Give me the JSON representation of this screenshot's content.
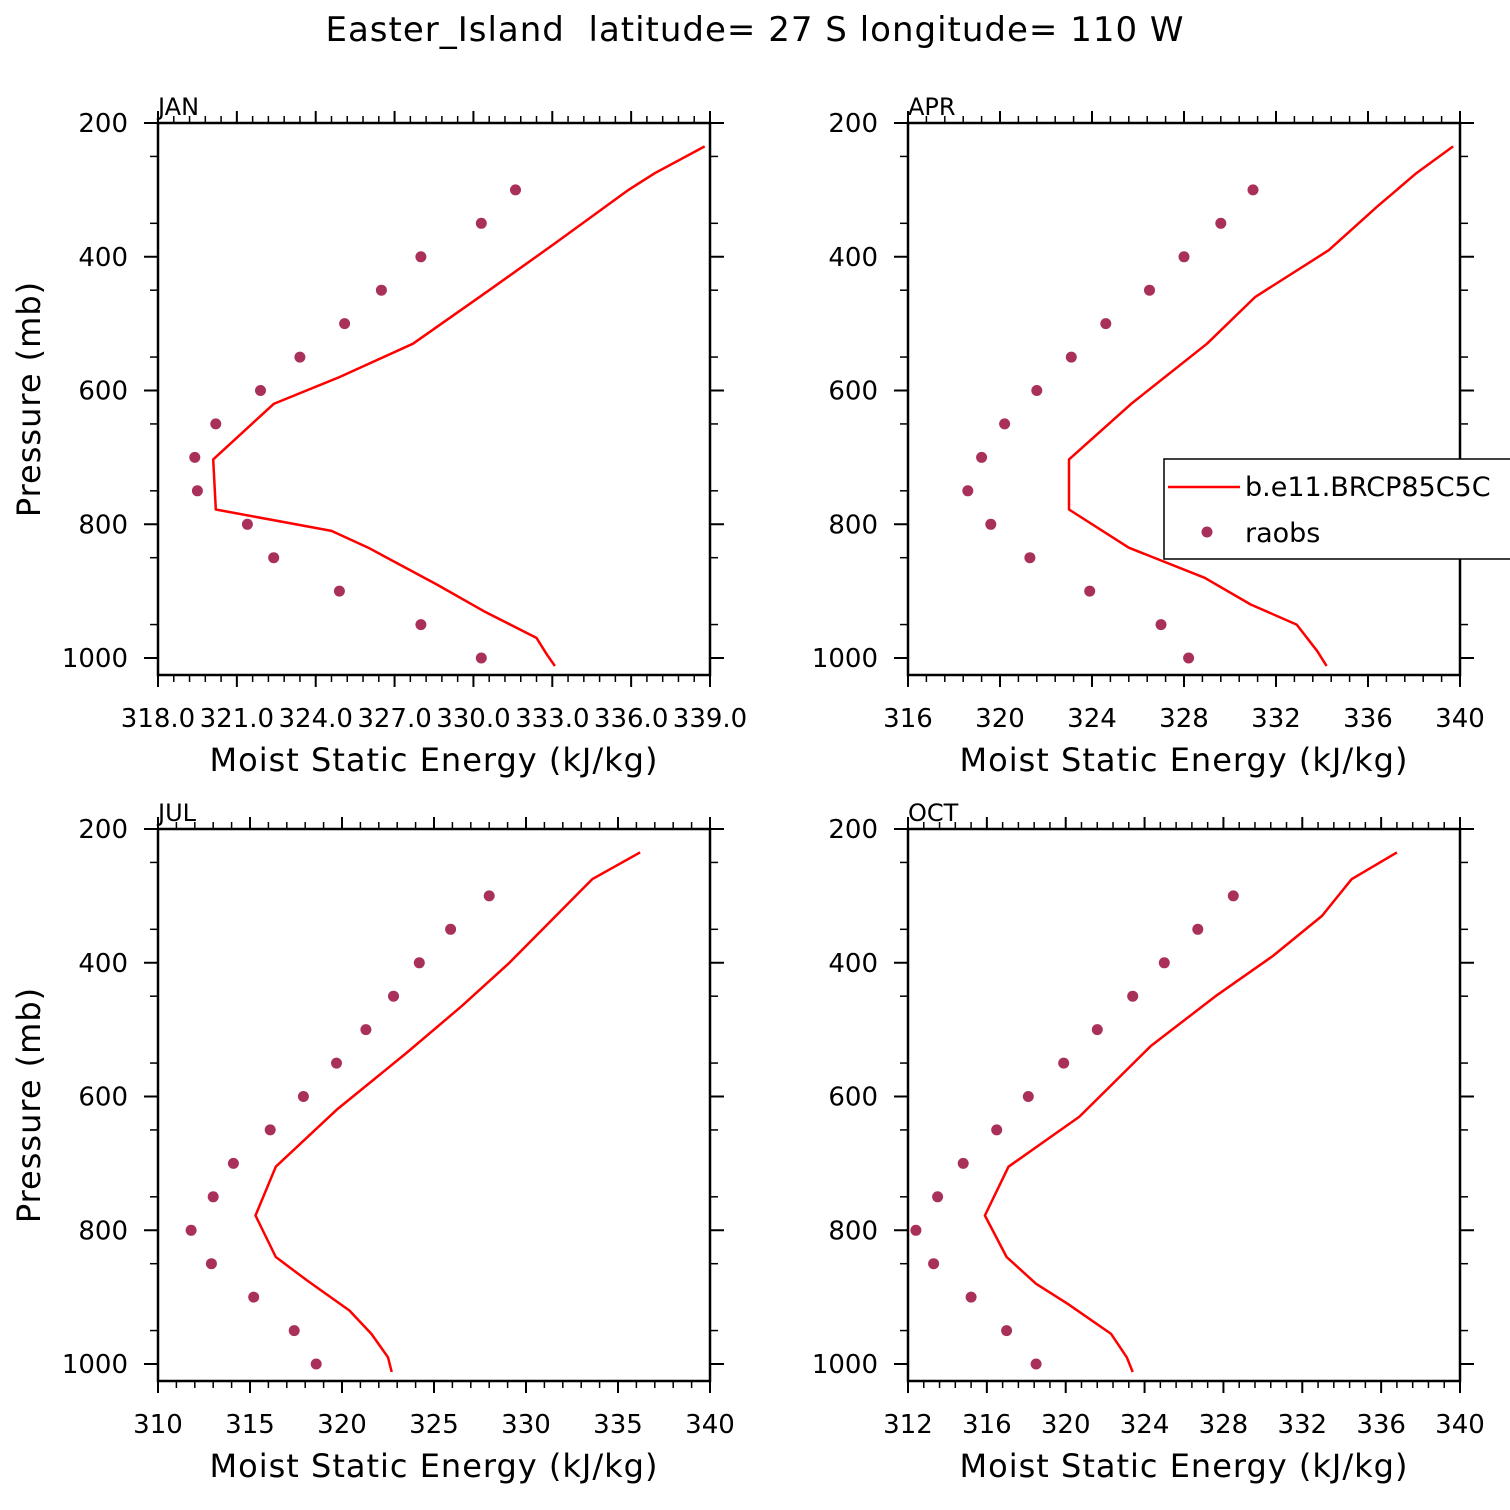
{
  "title": "Easter_Island  latitude= 27 S longitude= 110 W",
  "colors": {
    "model_line": "#ff0000",
    "raobs_marker": "#a8305a",
    "axis": "#000000"
  },
  "legend": {
    "model_label": "b.e11.BRCP85C5C",
    "obs_label": "raobs",
    "placement": "right, inside APR panel"
  },
  "chart_data": [
    {
      "type": "line",
      "panel_label": "JAN",
      "xlabel": "Moist Static Energy (kJ/kg)",
      "ylabel": "Pressure (mb)",
      "xlim": [
        318.0,
        339.0
      ],
      "ylim": [
        1000,
        200
      ],
      "y_reversed": true,
      "xticks": [
        "318.0",
        "321.0",
        "324.0",
        "327.0",
        "330.0",
        "333.0",
        "336.0",
        "339.0"
      ],
      "yticks": [
        200,
        400,
        600,
        800,
        1000
      ],
      "series": [
        {
          "name": "b.e11.BRCP85C5C",
          "kind": "line",
          "x": [
            333.1,
            332.8,
            332.4,
            330.4,
            328.6,
            326.0,
            324.6,
            320.2,
            320.1,
            322.4,
            324.9,
            327.7,
            330.6,
            333.1,
            335.9,
            336.9,
            338.8
          ],
          "y": [
            1012,
            995,
            970,
            930,
            890,
            835,
            810,
            778,
            703,
            620,
            580,
            530,
            450,
            380,
            300,
            275,
            235
          ]
        },
        {
          "name": "raobs",
          "kind": "scatter",
          "x": [
            330.3,
            328.0,
            324.9,
            322.4,
            321.4,
            319.5,
            319.4,
            320.2,
            321.9,
            323.4,
            325.1,
            326.5,
            328.0,
            330.3,
            331.6
          ],
          "y": [
            1000,
            950,
            900,
            850,
            800,
            750,
            700,
            650,
            600,
            550,
            500,
            450,
            400,
            350,
            300
          ]
        }
      ]
    },
    {
      "type": "line",
      "panel_label": "APR",
      "xlabel": "Moist Static Energy (kJ/kg)",
      "ylabel": "",
      "xlim": [
        316,
        340
      ],
      "ylim": [
        1000,
        200
      ],
      "y_reversed": true,
      "xticks": [
        "316",
        "320",
        "324",
        "328",
        "332",
        "336",
        "340"
      ],
      "yticks": [
        200,
        400,
        600,
        800,
        1000
      ],
      "series": [
        {
          "name": "b.e11.BRCP85C5C",
          "kind": "line",
          "x": [
            334.2,
            333.8,
            332.9,
            330.9,
            328.9,
            325.6,
            323.0,
            323.0,
            325.7,
            329.0,
            331.1,
            334.3,
            336.4,
            338.1,
            339.7
          ],
          "y": [
            1012,
            990,
            950,
            920,
            880,
            835,
            778,
            703,
            620,
            530,
            460,
            390,
            325,
            275,
            235
          ]
        },
        {
          "name": "raobs",
          "kind": "scatter",
          "x": [
            328.2,
            327.0,
            323.9,
            321.3,
            319.6,
            318.6,
            319.2,
            320.2,
            321.6,
            323.1,
            324.6,
            326.5,
            328.0,
            329.6,
            331.0
          ],
          "y": [
            1000,
            950,
            900,
            850,
            800,
            750,
            700,
            650,
            600,
            550,
            500,
            450,
            400,
            350,
            300
          ]
        }
      ]
    },
    {
      "type": "line",
      "panel_label": "JUL",
      "xlabel": "Moist Static Energy (kJ/kg)",
      "ylabel": "Pressure (mb)",
      "xlim": [
        310,
        340
      ],
      "ylim": [
        1000,
        200
      ],
      "y_reversed": true,
      "xticks": [
        "310",
        "315",
        "320",
        "325",
        "330",
        "335",
        "340"
      ],
      "yticks": [
        200,
        400,
        600,
        800,
        1000
      ],
      "series": [
        {
          "name": "b.e11.BRCP85C5C",
          "kind": "line",
          "x": [
            322.7,
            322.5,
            321.6,
            320.4,
            318.1,
            316.4,
            315.3,
            316.4,
            319.7,
            323.5,
            326.5,
            329.1,
            331.8,
            333.6,
            336.2
          ],
          "y": [
            1012,
            990,
            955,
            920,
            875,
            840,
            778,
            705,
            620,
            535,
            465,
            400,
            325,
            275,
            235
          ]
        },
        {
          "name": "raobs",
          "kind": "scatter",
          "x": [
            318.6,
            317.4,
            315.2,
            312.9,
            311.8,
            313.0,
            314.1,
            316.1,
            317.9,
            319.7,
            321.3,
            322.8,
            324.2,
            325.9,
            328.0
          ],
          "y": [
            1000,
            950,
            900,
            850,
            800,
            750,
            700,
            650,
            600,
            550,
            500,
            450,
            400,
            350,
            300
          ]
        }
      ]
    },
    {
      "type": "line",
      "panel_label": "OCT",
      "xlabel": "Moist Static Energy (kJ/kg)",
      "ylabel": "",
      "xlim": [
        312,
        340
      ],
      "ylim": [
        1000,
        200
      ],
      "y_reversed": true,
      "xticks": [
        "312",
        "316",
        "320",
        "324",
        "328",
        "332",
        "336",
        "340"
      ],
      "yticks": [
        200,
        400,
        600,
        800,
        1000
      ],
      "series": [
        {
          "name": "b.e11.BRCP85C5C",
          "kind": "line",
          "x": [
            323.4,
            323.1,
            322.3,
            320.1,
            318.5,
            317.0,
            315.9,
            317.1,
            320.7,
            324.3,
            327.6,
            330.5,
            333.0,
            334.5,
            336.8
          ],
          "y": [
            1012,
            990,
            955,
            910,
            880,
            840,
            778,
            705,
            630,
            525,
            450,
            390,
            330,
            275,
            235
          ]
        },
        {
          "name": "raobs",
          "kind": "scatter",
          "x": [
            318.5,
            317.0,
            315.2,
            313.3,
            312.4,
            313.5,
            314.8,
            316.5,
            318.1,
            319.9,
            321.6,
            323.4,
            325.0,
            326.7,
            328.5
          ],
          "y": [
            1000,
            950,
            900,
            850,
            800,
            750,
            700,
            650,
            600,
            550,
            500,
            450,
            400,
            350,
            300
          ]
        }
      ]
    }
  ]
}
